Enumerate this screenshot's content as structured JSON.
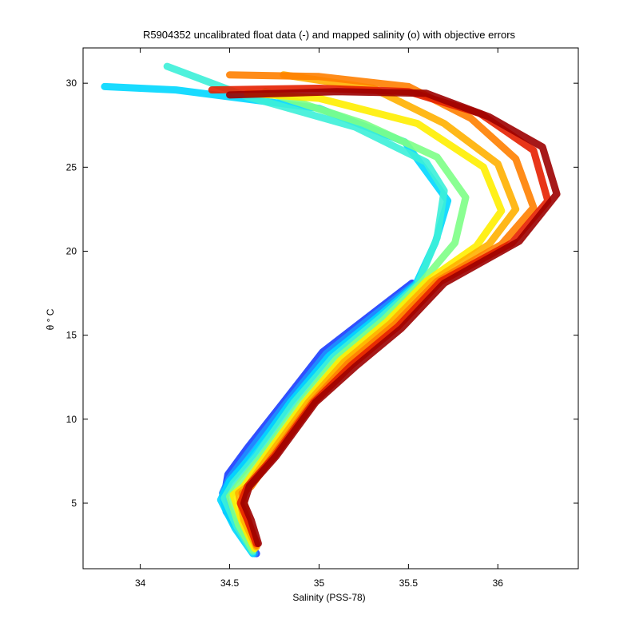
{
  "chart_data": {
    "type": "line",
    "title": "R5904352 uncalibrated float data (-) and mapped salinity (o) with objective errors",
    "xlabel": "Salinity (PSS-78)",
    "ylabel": "θ ° C",
    "xlim": [
      33.68,
      36.45
    ],
    "ylim": [
      1.1,
      32.1
    ],
    "xticks": [
      34,
      34.5,
      35,
      35.5,
      36
    ],
    "xtick_labels": [
      "34",
      "34.5",
      "35",
      "35.5",
      "36"
    ],
    "yticks": [
      5,
      10,
      15,
      20,
      25,
      30
    ],
    "ytick_labels": [
      "5",
      "10",
      "15",
      "20",
      "25",
      "30"
    ],
    "grid": false,
    "legend": "none",
    "colormap": "jet",
    "colors": [
      "#00008f",
      "#0000ff",
      "#0080ff",
      "#00ffff",
      "#80ff80",
      "#ffff00",
      "#ff8000",
      "#ff0000",
      "#800000"
    ],
    "series": [
      {
        "color": "#1a3cff",
        "values": [
          [
            34.65,
            2.0
          ],
          [
            34.58,
            3.0
          ],
          [
            34.5,
            4.2
          ],
          [
            34.47,
            5.5
          ],
          [
            34.49,
            6.7
          ],
          [
            34.6,
            8.3
          ],
          [
            34.8,
            11.0
          ],
          [
            35.02,
            14.0
          ],
          [
            35.3,
            16.3
          ],
          [
            35.52,
            18.1
          ]
        ]
      },
      {
        "color": "#1e90ff",
        "values": [
          [
            34.64,
            2.0
          ],
          [
            34.56,
            3.2
          ],
          [
            34.48,
            4.5
          ],
          [
            34.46,
            5.6
          ],
          [
            34.5,
            6.5
          ],
          [
            34.61,
            8.1
          ],
          [
            34.82,
            11.0
          ],
          [
            35.04,
            13.9
          ],
          [
            35.31,
            16.2
          ],
          [
            35.53,
            18.0
          ]
        ]
      },
      {
        "color": "#00d7ff",
        "values": [
          [
            34.63,
            2.0
          ],
          [
            34.53,
            3.5
          ],
          [
            34.45,
            5.2
          ],
          [
            34.5,
            6.3
          ],
          [
            34.63,
            7.9
          ],
          [
            34.84,
            11.0
          ],
          [
            35.06,
            13.8
          ],
          [
            35.33,
            16.1
          ],
          [
            35.54,
            18.0
          ],
          [
            35.65,
            20.5
          ],
          [
            35.72,
            23.0
          ],
          [
            35.48,
            26.5
          ],
          [
            35.0,
            28.5
          ],
          [
            34.2,
            29.6
          ],
          [
            33.8,
            29.8
          ]
        ]
      },
      {
        "color": "#3cf0d8",
        "values": [
          [
            34.63,
            2.1
          ],
          [
            34.54,
            3.6
          ],
          [
            34.47,
            5.3
          ],
          [
            34.52,
            6.2
          ],
          [
            34.65,
            7.8
          ],
          [
            34.86,
            11.0
          ],
          [
            35.08,
            13.7
          ],
          [
            35.34,
            16.0
          ],
          [
            35.55,
            18.0
          ],
          [
            35.66,
            20.8
          ],
          [
            35.7,
            23.6
          ],
          [
            35.6,
            25.3
          ],
          [
            35.2,
            27.4
          ],
          [
            34.6,
            29.2
          ],
          [
            34.15,
            31.0
          ]
        ]
      },
      {
        "color": "#7dff86",
        "values": [
          [
            34.63,
            2.2
          ],
          [
            34.55,
            3.7
          ],
          [
            34.5,
            5.4
          ],
          [
            34.55,
            6.1
          ],
          [
            34.68,
            7.8
          ],
          [
            34.9,
            11.0
          ],
          [
            35.1,
            13.6
          ],
          [
            35.36,
            15.9
          ],
          [
            35.57,
            18.1
          ],
          [
            35.76,
            20.5
          ],
          [
            35.82,
            23.2
          ],
          [
            35.66,
            25.6
          ],
          [
            35.25,
            27.6
          ],
          [
            34.7,
            29.5
          ]
        ]
      },
      {
        "color": "#ffee00",
        "values": [
          [
            34.64,
            2.3
          ],
          [
            34.57,
            3.9
          ],
          [
            34.52,
            5.5
          ],
          [
            34.58,
            6.0
          ],
          [
            34.7,
            7.8
          ],
          [
            34.92,
            11.0
          ],
          [
            35.12,
            13.5
          ],
          [
            35.38,
            15.8
          ],
          [
            35.6,
            18.2
          ],
          [
            35.88,
            20.3
          ],
          [
            36.02,
            22.4
          ],
          [
            35.92,
            25.0
          ],
          [
            35.55,
            27.6
          ],
          [
            35.0,
            29.1
          ],
          [
            34.6,
            29.4
          ]
        ]
      },
      {
        "color": "#ffb000",
        "values": [
          [
            34.65,
            2.4
          ],
          [
            34.58,
            4.0
          ],
          [
            34.55,
            5.6
          ],
          [
            34.6,
            6.0
          ],
          [
            34.72,
            7.8
          ],
          [
            34.94,
            11.0
          ],
          [
            35.14,
            13.4
          ],
          [
            35.4,
            15.7
          ],
          [
            35.63,
            18.2
          ],
          [
            35.95,
            20.4
          ],
          [
            36.1,
            22.5
          ],
          [
            36.0,
            25.2
          ],
          [
            35.7,
            27.6
          ],
          [
            35.3,
            29.7
          ],
          [
            34.8,
            30.5
          ]
        ]
      },
      {
        "color": "#ff8000",
        "values": [
          [
            34.65,
            2.5
          ],
          [
            34.6,
            4.1
          ],
          [
            34.57,
            5.6
          ],
          [
            34.62,
            6.0
          ],
          [
            34.74,
            7.8
          ],
          [
            34.96,
            11.0
          ],
          [
            35.16,
            13.3
          ],
          [
            35.42,
            15.6
          ],
          [
            35.66,
            18.2
          ],
          [
            36.02,
            20.4
          ],
          [
            36.2,
            22.6
          ],
          [
            36.1,
            25.5
          ],
          [
            35.85,
            27.9
          ],
          [
            35.5,
            29.8
          ],
          [
            35.0,
            30.4
          ],
          [
            34.5,
            30.5
          ]
        ]
      },
      {
        "color": "#e62000",
        "values": [
          [
            34.65,
            2.6
          ],
          [
            34.6,
            4.0
          ],
          [
            34.56,
            5.0
          ],
          [
            34.6,
            6.0
          ],
          [
            34.75,
            7.8
          ],
          [
            34.97,
            11.0
          ],
          [
            35.18,
            13.2
          ],
          [
            35.44,
            15.5
          ],
          [
            35.68,
            18.2
          ],
          [
            36.08,
            20.5
          ],
          [
            36.28,
            23.0
          ],
          [
            36.2,
            26.0
          ],
          [
            35.9,
            28.2
          ],
          [
            35.5,
            29.5
          ],
          [
            35.0,
            29.7
          ],
          [
            34.4,
            29.6
          ]
        ]
      },
      {
        "color": "#9c0000",
        "values": [
          [
            34.66,
            2.6
          ],
          [
            34.62,
            4.0
          ],
          [
            34.58,
            5.0
          ],
          [
            34.61,
            6.0
          ],
          [
            34.76,
            7.8
          ],
          [
            34.98,
            11.0
          ],
          [
            35.2,
            13.1
          ],
          [
            35.46,
            15.4
          ],
          [
            35.7,
            18.1
          ],
          [
            36.12,
            20.6
          ],
          [
            36.33,
            23.4
          ],
          [
            36.25,
            26.2
          ],
          [
            35.95,
            28.0
          ],
          [
            35.6,
            29.4
          ],
          [
            35.1,
            29.5
          ],
          [
            34.5,
            29.3
          ]
        ]
      }
    ]
  }
}
